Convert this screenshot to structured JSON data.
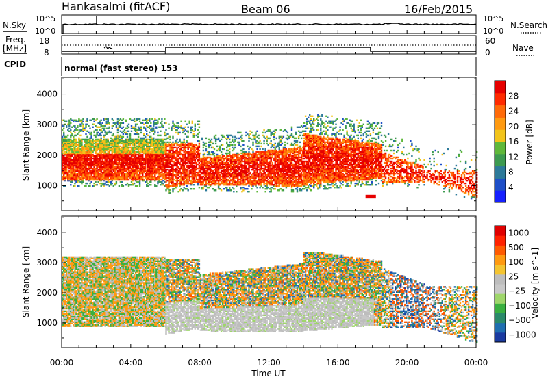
{
  "header": {
    "station": "Hankasalmi (fitACF)",
    "beam": "Beam 06",
    "date": "16/Feb/2015"
  },
  "top_panels": {
    "nsky_label": "N.Sky",
    "nsky_ticks": [
      "10^5",
      "10^0"
    ],
    "nsearch_label": "N.Search",
    "nsearch_ticks": [
      "10^5",
      "10^0"
    ],
    "freq_label_1": "Freq.",
    "freq_label_2": "[MHz]",
    "freq_ticks": [
      "18",
      "8"
    ],
    "nave_label": "Nave",
    "nave_ticks": [
      "60",
      "0"
    ],
    "cpid_label": "CPID",
    "cpid_text": "normal (fast stereo) 153"
  },
  "chart_data": [
    {
      "type": "heatmap",
      "name": "power",
      "ylabel": "Slant Range [km]",
      "yticks": [
        "1000",
        "2000",
        "3000",
        "4000"
      ],
      "ylim": [
        180,
        4550
      ],
      "xlim": [
        0,
        24
      ],
      "colorbar_label": "Power [dB]",
      "colorbar_ticks": [
        "4",
        "8",
        "12",
        "16",
        "20",
        "24",
        "28"
      ],
      "colorscale": [
        "#1520ff",
        "#1e4fc8",
        "#2d7a9a",
        "#3d9a50",
        "#5fb83a",
        "#f2c41a",
        "#ff9a10",
        "#ff6a08",
        "#ff2a00",
        "#e60000"
      ]
    },
    {
      "type": "heatmap",
      "name": "velocity",
      "ylabel": "Slant Range [km]",
      "yticks": [
        "1000",
        "2000",
        "3000",
        "4000"
      ],
      "ylim": [
        180,
        4550
      ],
      "xlim": [
        0,
        24
      ],
      "xticks": [
        "00:00",
        "04:00",
        "08:00",
        "12:00",
        "16:00",
        "20:00",
        "00:00"
      ],
      "xlabel": "Time UT",
      "colorbar_label": "Velocity [m s^-1]",
      "colorbar_ticks": [
        "1000",
        "500",
        "100",
        "25",
        "−25",
        "−100",
        "−500",
        "−1000"
      ],
      "colorscale": [
        "#1a3aa0",
        "#1f6eb0",
        "#2a8a6a",
        "#3ab040",
        "#9ed66a",
        "#c8c8c8",
        "#bdbdbd",
        "#f4c430",
        "#ff9a10",
        "#ff5a00",
        "#ff2200",
        "#e00000"
      ]
    }
  ]
}
